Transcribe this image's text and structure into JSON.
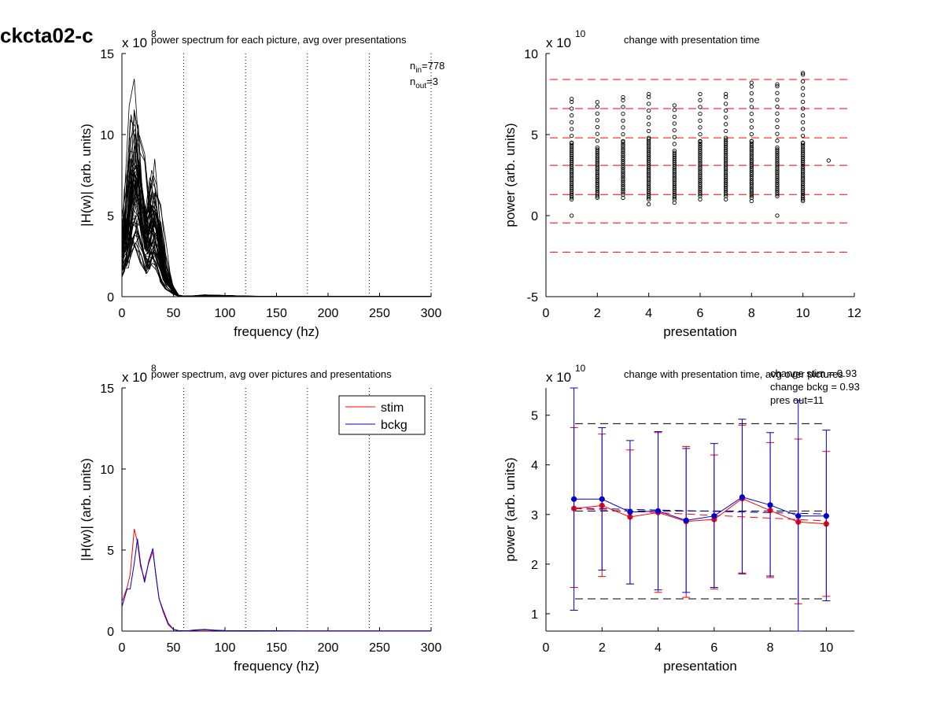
{
  "figure_title": "ckcta02-c",
  "chart_data": [
    {
      "type": "line",
      "title": "power spectrum for each picture, avg over presentations",
      "xlabel": "frequency (hz)",
      "ylabel": "|H(w)| (arb. units)",
      "exponent": "x 10",
      "exponent_power": "8",
      "xlim": [
        0,
        300
      ],
      "ylim": [
        0,
        15
      ],
      "xticks": [
        "0",
        "50",
        "100",
        "150",
        "200",
        "250",
        "300"
      ],
      "yticks": [
        "0",
        "5",
        "10",
        "15"
      ],
      "vlines": [
        60,
        120,
        180,
        240,
        300
      ],
      "annotation": {
        "n_in_label": "n",
        "n_in_sub": "in",
        "n_in_value": "=778",
        "n_out_label": "n",
        "n_out_sub": "out",
        "n_out_value": "=3"
      },
      "x": [
        0,
        5,
        10,
        15,
        20,
        25,
        30,
        35,
        40,
        45,
        50,
        55,
        60,
        70,
        80,
        90,
        100,
        120,
        150,
        200,
        250,
        300
      ],
      "series_mean": [
        2.5,
        3.5,
        6.0,
        6.5,
        4.5,
        3.2,
        4.5,
        3.6,
        1.8,
        0.9,
        0.3,
        0.05,
        0.02,
        0.03,
        0.06,
        0.05,
        0.04,
        0.02,
        0.01,
        0.01,
        0.01,
        0.01
      ],
      "line_count": 60,
      "color": "#000000"
    },
    {
      "type": "scatter",
      "title": "change with presentation time",
      "xlabel": "presentation",
      "ylabel": "power (arb. units)",
      "exponent": "x 10",
      "exponent_power": "10",
      "xlim": [
        0,
        12
      ],
      "ylim": [
        -5,
        10
      ],
      "xticks": [
        "0",
        "2",
        "4",
        "6",
        "8",
        "10",
        "12"
      ],
      "yticks": [
        "-5",
        "0",
        "5",
        "10"
      ],
      "hlines": [
        8.4,
        6.6,
        4.8,
        3.1,
        1.3,
        -0.45,
        -2.25
      ],
      "hline_color": "#ff0000",
      "columns": [
        {
          "x": 1,
          "min": 0.0,
          "max": 7.2,
          "dense_lo": 1.0,
          "dense_hi": 4.5
        },
        {
          "x": 2,
          "min": 1.1,
          "max": 7.0,
          "dense_lo": 1.2,
          "dense_hi": 4.2
        },
        {
          "x": 3,
          "min": 1.1,
          "max": 7.3,
          "dense_lo": 1.3,
          "dense_hi": 4.6
        },
        {
          "x": 4,
          "min": 0.7,
          "max": 7.5,
          "dense_lo": 1.0,
          "dense_hi": 4.8
        },
        {
          "x": 5,
          "min": 0.8,
          "max": 6.8,
          "dense_lo": 1.0,
          "dense_hi": 4.0
        },
        {
          "x": 6,
          "min": 1.0,
          "max": 7.5,
          "dense_lo": 1.2,
          "dense_hi": 4.6
        },
        {
          "x": 7,
          "min": 1.0,
          "max": 7.5,
          "dense_lo": 1.2,
          "dense_hi": 4.8
        },
        {
          "x": 8,
          "min": 0.9,
          "max": 8.2,
          "dense_lo": 1.1,
          "dense_hi": 4.6
        },
        {
          "x": 9,
          "min": 0.0,
          "max": 8.1,
          "dense_lo": 1.2,
          "dense_hi": 4.2
        },
        {
          "x": 10,
          "min": 0.9,
          "max": 8.8,
          "dense_lo": 1.0,
          "dense_hi": 4.5
        },
        {
          "x": 11,
          "min": 3.4,
          "max": 3.4,
          "dense_lo": 3.4,
          "dense_hi": 3.4
        }
      ]
    },
    {
      "type": "line",
      "title": "power spectrum, avg over pictures and presentations",
      "xlabel": "frequency (hz)",
      "ylabel": "|H(w)| (arb. units)",
      "exponent": "x 10",
      "exponent_power": "8",
      "xlim": [
        0,
        300
      ],
      "ylim": [
        0,
        15
      ],
      "xticks": [
        "0",
        "50",
        "100",
        "150",
        "200",
        "250",
        "300"
      ],
      "yticks": [
        "0",
        "5",
        "10",
        "15"
      ],
      "vlines": [
        60,
        120,
        180,
        240,
        300
      ],
      "legend": "top-right",
      "x": [
        0,
        5,
        8,
        12,
        15,
        18,
        22,
        26,
        30,
        33,
        36,
        40,
        45,
        50,
        55,
        60,
        65,
        70,
        80,
        90,
        100,
        150,
        200,
        250,
        300
      ],
      "series": [
        {
          "name": "stim",
          "color": "#ff0000",
          "values": [
            1.8,
            2.7,
            3.5,
            6.3,
            5.5,
            4.0,
            3.2,
            4.2,
            4.9,
            3.5,
            2.0,
            1.3,
            0.5,
            0.1,
            0.03,
            0.02,
            0.02,
            0.05,
            0.08,
            0.05,
            0.03,
            0.02,
            0.01,
            0.01,
            0.01
          ]
        },
        {
          "name": "bckg",
          "color": "#0000cc",
          "values": [
            1.5,
            2.6,
            2.6,
            4.2,
            5.7,
            4.2,
            3.0,
            4.3,
            5.1,
            3.4,
            2.0,
            1.2,
            0.4,
            0.1,
            0.03,
            0.02,
            0.03,
            0.07,
            0.1,
            0.06,
            0.03,
            0.02,
            0.01,
            0.01,
            0.01
          ]
        }
      ]
    },
    {
      "type": "line",
      "title": "change with presentation time, avg over pictures",
      "xlabel": "presentation",
      "ylabel": "power (arb. units)",
      "exponent": "x 10",
      "exponent_power": "10",
      "xlim": [
        0,
        11
      ],
      "ylim": [
        0.65,
        5.55
      ],
      "xticks": [
        "0",
        "2",
        "4",
        "6",
        "8",
        "10"
      ],
      "yticks": [
        "1",
        "2",
        "3",
        "4",
        "5"
      ],
      "annotations": [
        "change stim = 0.93",
        "change bckg = 0.93",
        "pres out=11"
      ],
      "hlines_black": [
        4.83,
        3.07,
        1.3
      ],
      "fit_lines": [
        {
          "color": "#ff0000",
          "y": [
            3.12,
            2.87
          ]
        },
        {
          "color": "#0000cc",
          "y": [
            3.13,
            3.01
          ]
        }
      ],
      "x": [
        1,
        2,
        3,
        4,
        5,
        6,
        7,
        8,
        9,
        10
      ],
      "series": [
        {
          "name": "stim",
          "color": "#ff0000",
          "values": [
            3.12,
            3.18,
            2.95,
            3.04,
            2.86,
            2.9,
            3.32,
            3.08,
            2.85,
            2.81
          ],
          "err_lo": [
            1.53,
            1.75,
            1.6,
            1.43,
            1.33,
            1.5,
            1.8,
            1.73,
            1.2,
            1.35
          ],
          "err_hi": [
            4.75,
            4.62,
            4.3,
            4.65,
            4.37,
            4.2,
            4.8,
            4.45,
            4.52,
            4.27
          ]
        },
        {
          "name": "bckg",
          "color": "#0000cc",
          "values": [
            3.31,
            3.31,
            3.05,
            3.07,
            2.88,
            2.97,
            3.35,
            3.19,
            2.97,
            2.97
          ],
          "err_lo": [
            1.07,
            1.88,
            1.6,
            1.48,
            1.43,
            1.53,
            1.82,
            1.76,
            0.65,
            1.26
          ],
          "err_hi": [
            5.55,
            4.75,
            4.49,
            4.67,
            4.33,
            4.43,
            4.92,
            4.65,
            5.3,
            4.7
          ]
        }
      ]
    }
  ]
}
